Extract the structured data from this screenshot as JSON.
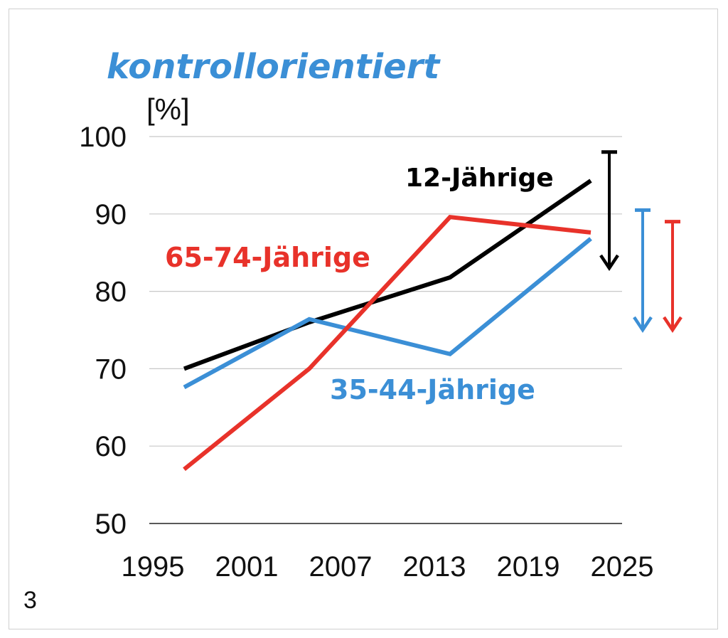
{
  "figure_number": "3",
  "chart_data": {
    "type": "line",
    "title": "kontrollorientiert",
    "ylabel": "[%]",
    "xlabel": "",
    "x_ticks": [
      "1995",
      "2001",
      "2007",
      "2013",
      "2019",
      "2025"
    ],
    "y_ticks": [
      "50",
      "60",
      "70",
      "80",
      "90",
      "100"
    ],
    "xlim": [
      1995,
      2025
    ],
    "ylim": [
      50,
      100
    ],
    "grid": true,
    "series": [
      {
        "name": "12-Jährige",
        "color": "#000000",
        "points": [
          [
            1997,
            70
          ],
          [
            2005,
            76
          ],
          [
            2014,
            81.8
          ],
          [
            2023,
            94.3
          ]
        ]
      },
      {
        "name": "35-44-Jährige",
        "color": "#3b8fd6",
        "points": [
          [
            1997,
            67.6
          ],
          [
            2005,
            76.4
          ],
          [
            2014,
            71.9
          ],
          [
            2023,
            86.8
          ]
        ]
      },
      {
        "name": "65-74-Jährige",
        "color": "#e8322a",
        "points": [
          [
            1997,
            57
          ],
          [
            2005,
            70
          ],
          [
            2014,
            89.6
          ],
          [
            2023,
            87.6
          ]
        ]
      }
    ],
    "arrows": [
      {
        "series": "12-Jährige",
        "color": "#000000",
        "from": 98,
        "to": 83
      },
      {
        "series": "35-44-Jährige",
        "color": "#3b8fd6",
        "from": 90.5,
        "to": 75
      },
      {
        "series": "65-74-Jährige",
        "color": "#e8322a",
        "from": 89,
        "to": 75
      }
    ]
  }
}
